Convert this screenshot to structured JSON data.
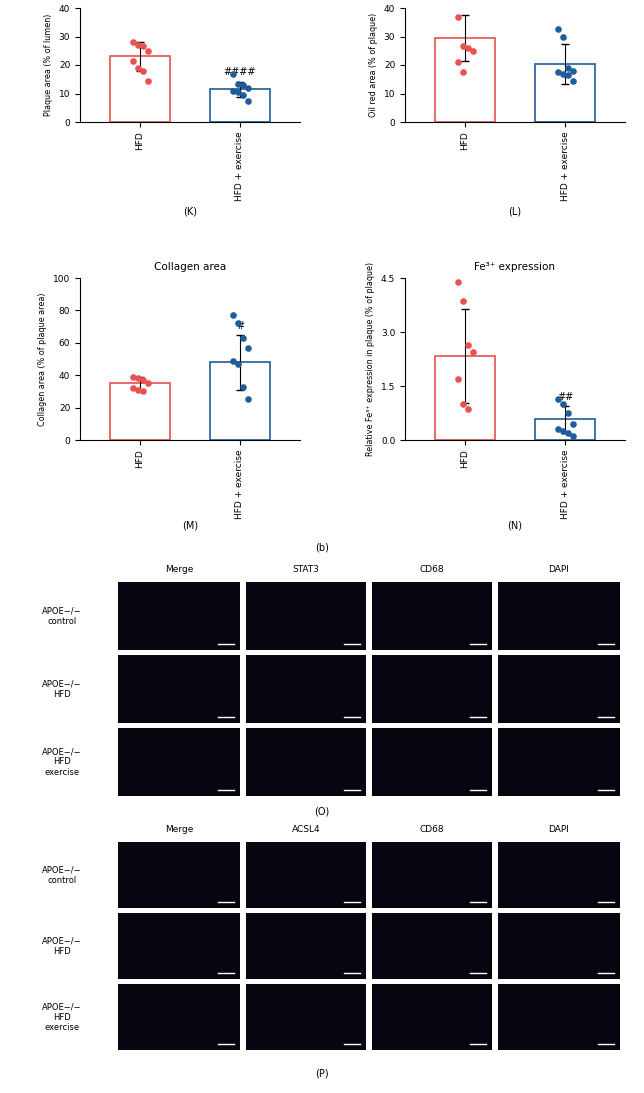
{
  "chart_data": [
    {
      "type": "bar",
      "label": "(K)",
      "ylabel": "Plaque area (% of lumen)",
      "categories": [
        "HFD",
        "HFD + exercise"
      ],
      "values": [
        23,
        11.5
      ],
      "errors": [
        5,
        2.7
      ],
      "points": [
        [
          28,
          27,
          26.5,
          25,
          21.5,
          19,
          18,
          14.5
        ],
        [
          17,
          13.5,
          13,
          12,
          11,
          10.5,
          9.5,
          7.5
        ]
      ],
      "colors": [
        "#e8524f",
        "#1f5c99"
      ],
      "annotation": {
        "category": "HFD + exercise",
        "text": "####"
      },
      "ylim": [
        0,
        40
      ],
      "yticks": [
        0,
        10,
        20,
        30,
        40
      ]
    },
    {
      "type": "bar",
      "label": "(L)",
      "ylabel": "Oil red area (% of plaque)",
      "categories": [
        "HFD",
        "HFD + exercise"
      ],
      "values": [
        29.5,
        20.5
      ],
      "errors": [
        8,
        7
      ],
      "points": [
        [
          37,
          26.5,
          26,
          25,
          21,
          17.5
        ],
        [
          32.5,
          30,
          19,
          18,
          17.5,
          17,
          16.5,
          14.5
        ]
      ],
      "colors": [
        "#e8524f",
        "#1f5c99"
      ],
      "ylim": [
        0,
        40
      ],
      "yticks": [
        0,
        10,
        20,
        30,
        40
      ]
    },
    {
      "type": "bar",
      "label": "(M)",
      "title": "Collagen area",
      "ylabel": "Collagen area (% of plaque area)",
      "categories": [
        "HFD",
        "HFD + exercise"
      ],
      "values": [
        35,
        48
      ],
      "errors": [
        4,
        17
      ],
      "points": [
        [
          39,
          38,
          37,
          35,
          32,
          31,
          30.5
        ],
        [
          77,
          72,
          63,
          57,
          49,
          47,
          33,
          25.5
        ]
      ],
      "colors": [
        "#e8524f",
        "#1f5c99"
      ],
      "annotation": {
        "category": "HFD + exercise",
        "text": "#"
      },
      "ylim": [
        0,
        100
      ],
      "yticks": [
        0,
        20,
        40,
        60,
        80,
        100
      ]
    },
    {
      "type": "bar",
      "label": "(N)",
      "title": "Fe³⁺ expression",
      "ylabel": "Relative Fe³⁺ expression in plaque (% of plaque)",
      "categories": [
        "HFD",
        "HFD + exercise"
      ],
      "values": [
        2.33,
        0.57
      ],
      "errors": [
        1.3,
        0.37
      ],
      "points": [
        [
          4.4,
          3.85,
          2.65,
          2.45,
          1.7,
          1.0,
          0.85
        ],
        [
          1.15,
          1.0,
          0.75,
          0.45,
          0.3,
          0.25,
          0.2,
          0.1
        ]
      ],
      "colors": [
        "#e8524f",
        "#1f5c99"
      ],
      "annotation": {
        "category": "HFD + exercise",
        "text": "##"
      },
      "ylim": [
        0,
        4.5
      ],
      "yticks": [
        {
          "value": 0,
          "label": "0.0"
        },
        1.5,
        {
          "value": 3,
          "label": "3.0"
        },
        4.5
      ]
    }
  ],
  "figure_label": "(b)",
  "image_panels": [
    {
      "label": "(O)",
      "columns": [
        "Merge",
        "STAT3",
        "CD68",
        "DAPI"
      ],
      "rows": [
        "APOE−/− control",
        "APOE−/− HFD",
        "APOE−/− HFD exercise"
      ]
    },
    {
      "label": "(P)",
      "columns": [
        "Merge",
        "ACSL4",
        "CD68",
        "DAPI"
      ],
      "rows": [
        "APOE−/− control",
        "APOE−/− HFD",
        "APOE−/− HFD exercise"
      ]
    }
  ]
}
